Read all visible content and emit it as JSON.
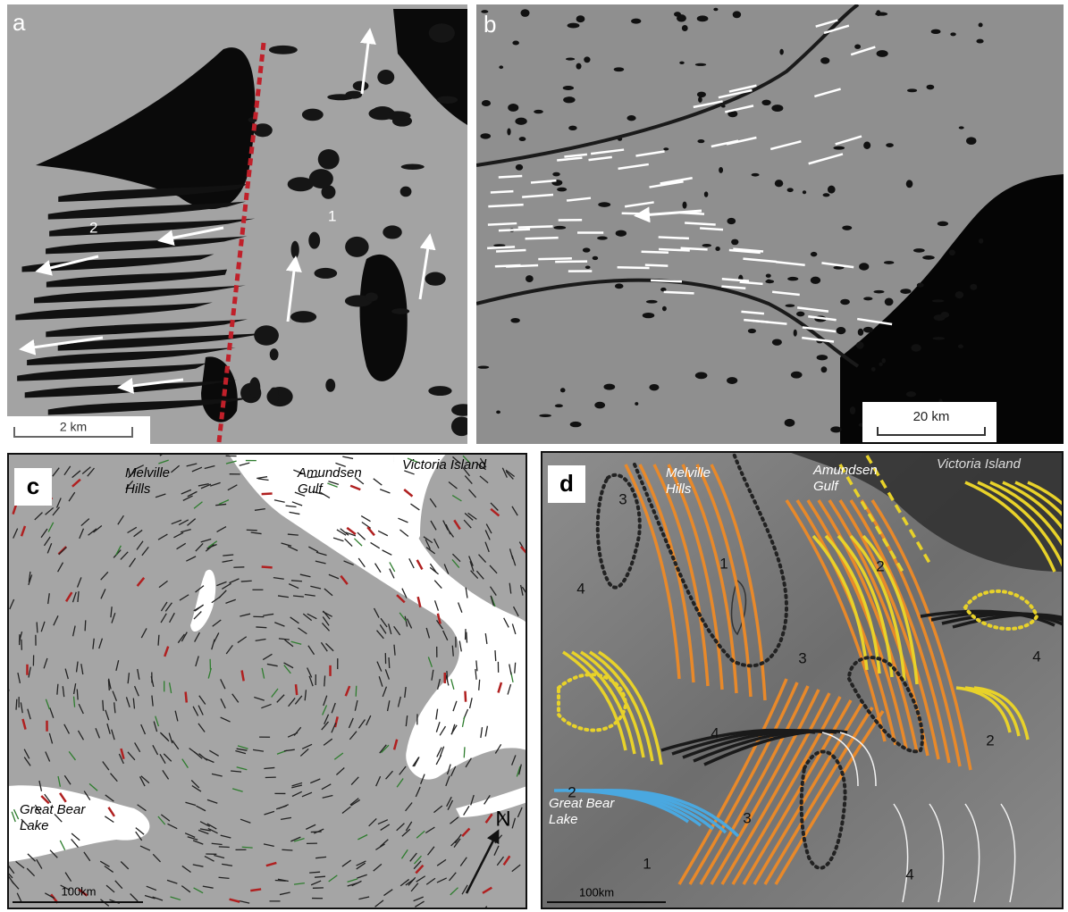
{
  "panels": [
    {
      "label": "a",
      "scale_bar": "2 km",
      "annotations": [
        "2",
        "1"
      ]
    },
    {
      "label": "b",
      "scale_bar": "20 km"
    },
    {
      "label": "c",
      "scale_bar": "100km",
      "north": "N",
      "place_names": [
        [
          "Melville",
          "Hills"
        ],
        [
          "Amundsen",
          "Gulf"
        ],
        [
          "Victoria Island"
        ],
        [
          "Great Bear",
          "Lake"
        ]
      ]
    },
    {
      "label": "d",
      "scale_bar": "100km",
      "place_names": [
        [
          "Melville",
          "Hills"
        ],
        [
          "Amundsen",
          "Gulf"
        ],
        [
          "Victoria Island"
        ],
        [
          "Great Bear",
          "Lake"
        ]
      ],
      "annotations": [
        "3",
        "1",
        "4",
        "2",
        "3",
        "4",
        "2",
        "4",
        "2",
        "3",
        "1",
        "4"
      ]
    }
  ]
}
